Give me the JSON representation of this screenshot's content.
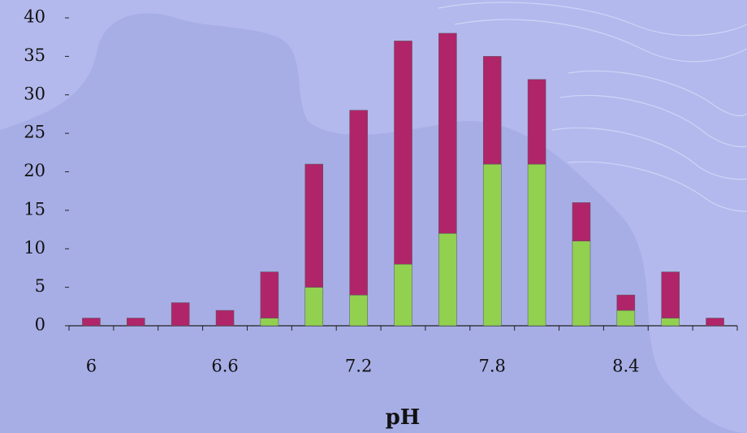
{
  "chart_data": {
    "type": "stacked_bar",
    "categories": [
      "6",
      null,
      null,
      "6.6",
      null,
      null,
      "7.2",
      null,
      null,
      "7.8",
      null,
      null,
      "8.4",
      null,
      null
    ],
    "series": [
      {
        "color": "#92d050",
        "values": [
          0,
          0,
          0,
          0,
          1,
          5,
          4,
          8,
          12,
          21,
          21,
          11,
          2,
          1,
          0
        ]
      },
      {
        "color": "#b0256a",
        "values": [
          1,
          1,
          3,
          2,
          6,
          16,
          24,
          29,
          26,
          14,
          11,
          5,
          2,
          6,
          1
        ]
      }
    ],
    "x_label": "pH",
    "ylim": [
      0,
      40
    ],
    "yticks": [
      0,
      5,
      10,
      15,
      20,
      25,
      30,
      35,
      40
    ]
  }
}
